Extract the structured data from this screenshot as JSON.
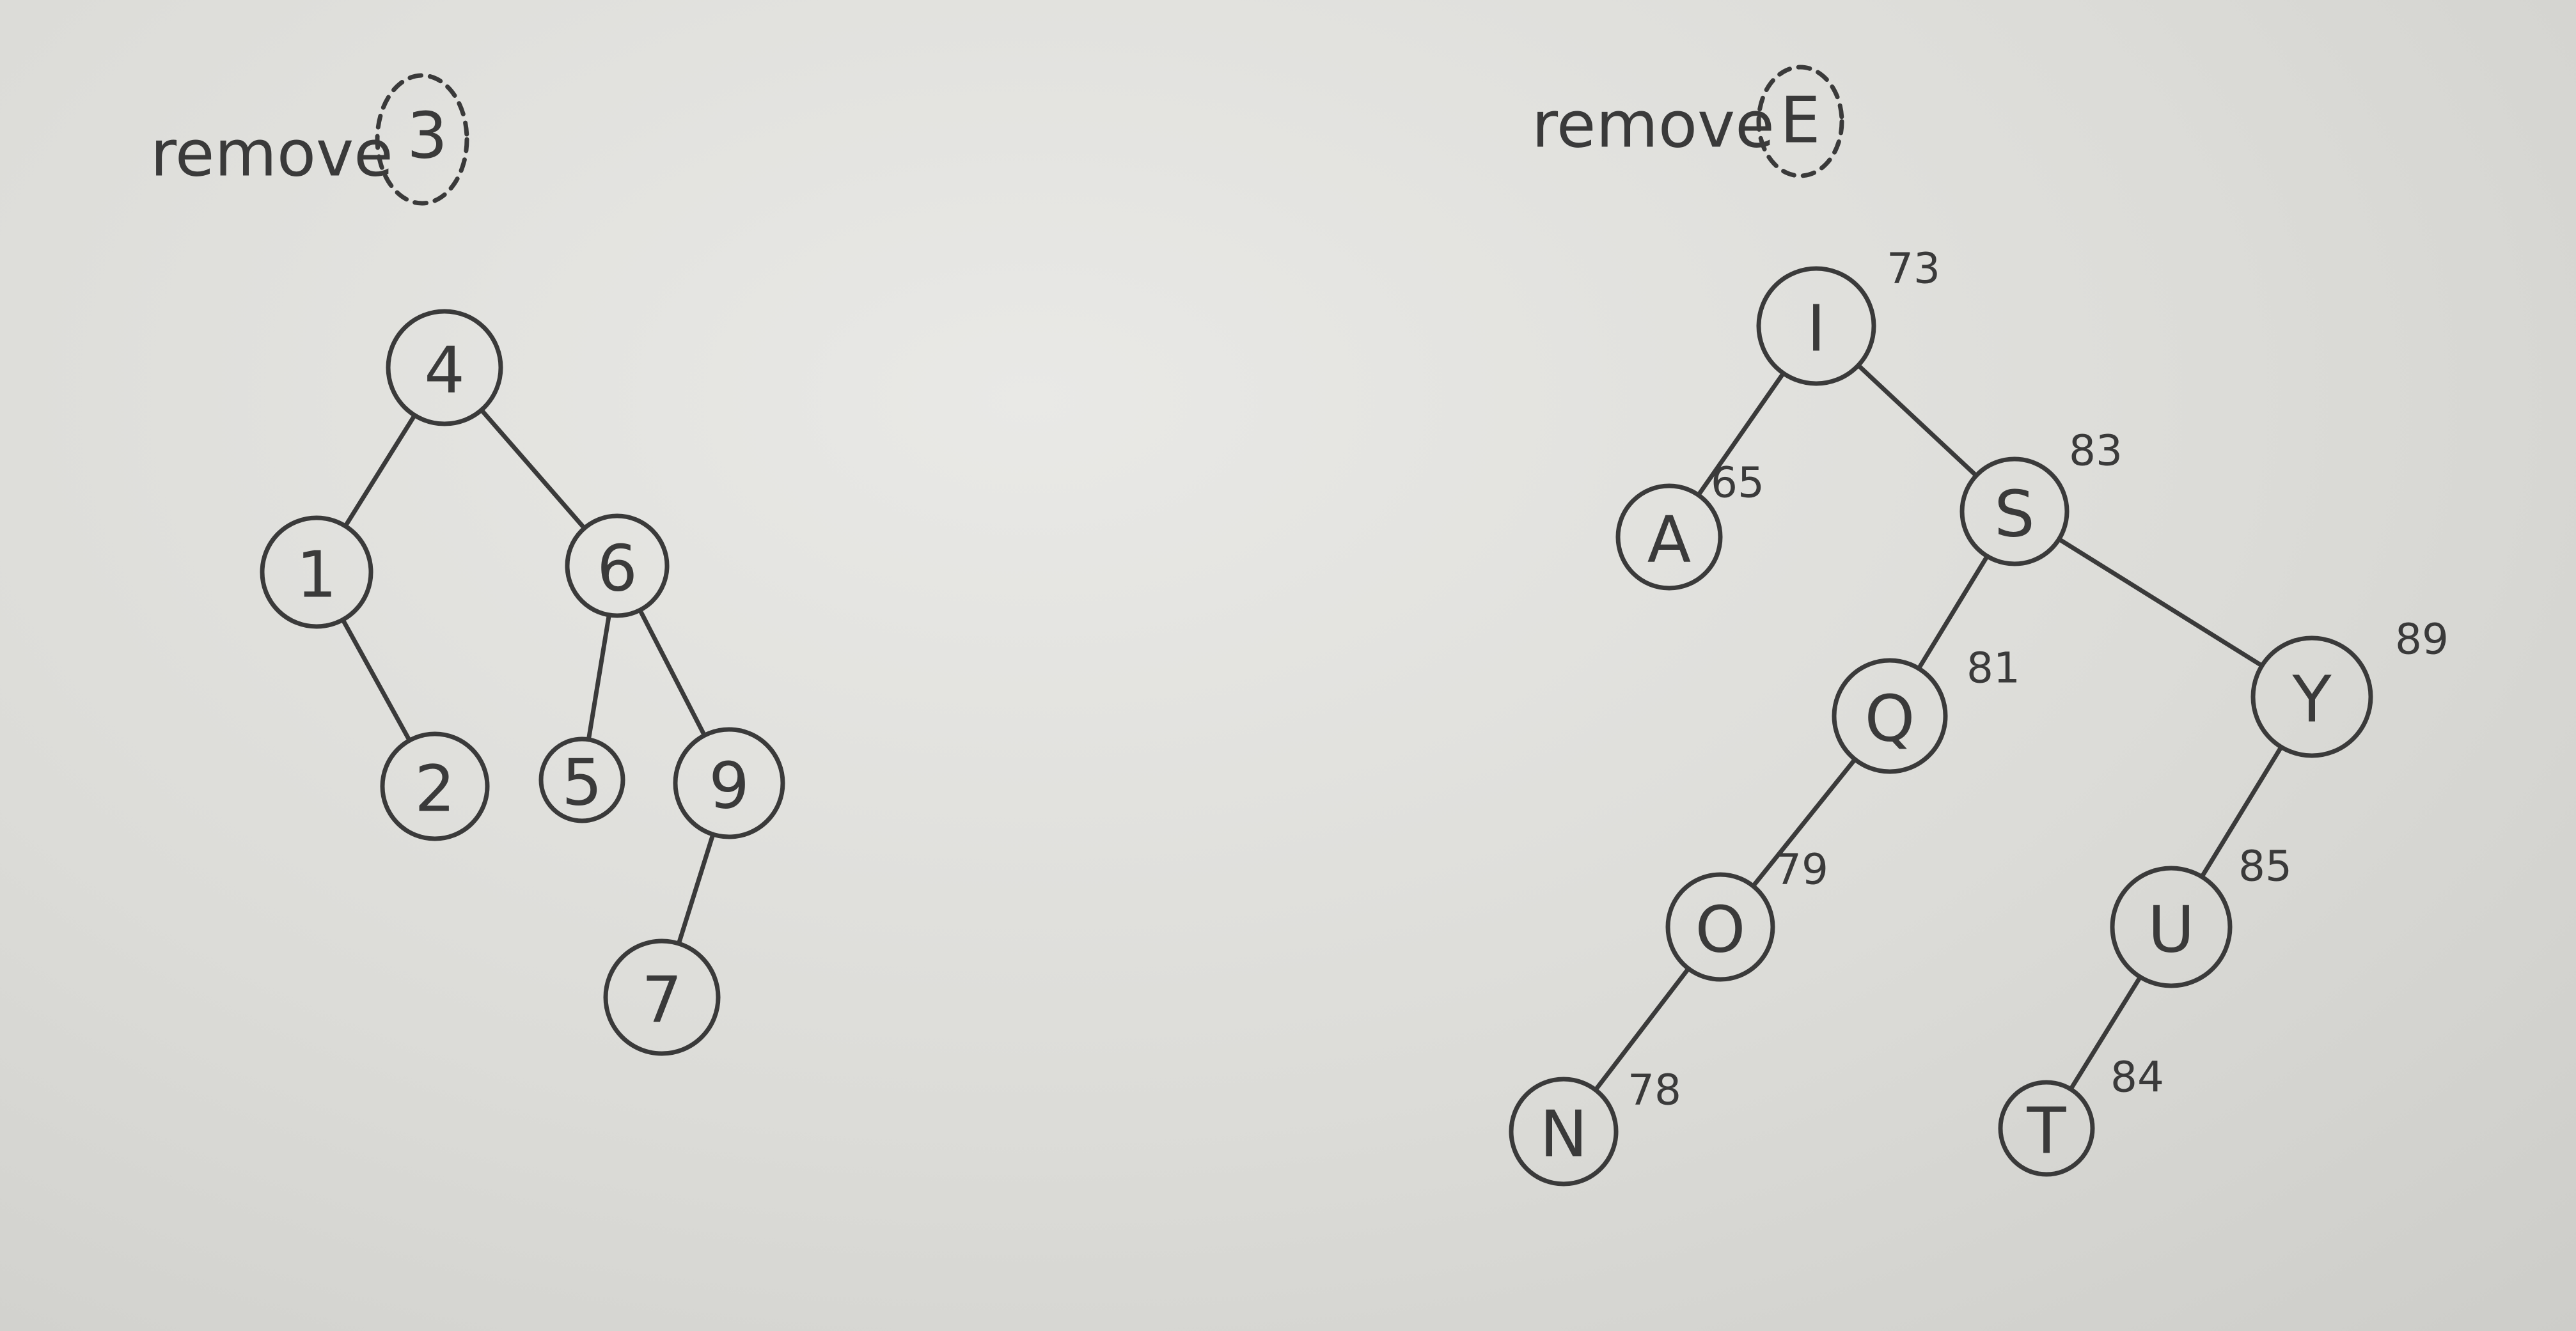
{
  "left_tree": {
    "title": "remove",
    "removed_key": "3",
    "nodes": [
      {
        "id": "n4",
        "label": "4"
      },
      {
        "id": "n1",
        "label": "1"
      },
      {
        "id": "n6",
        "label": "6"
      },
      {
        "id": "n2",
        "label": "2"
      },
      {
        "id": "n5",
        "label": "5"
      },
      {
        "id": "n9",
        "label": "9"
      },
      {
        "id": "n7",
        "label": "7"
      }
    ],
    "edges": [
      [
        "n4",
        "n1"
      ],
      [
        "n4",
        "n6"
      ],
      [
        "n1",
        "n2"
      ],
      [
        "n6",
        "n5"
      ],
      [
        "n6",
        "n9"
      ],
      [
        "n9",
        "n7"
      ]
    ]
  },
  "right_tree": {
    "title": "remove",
    "removed_key": "E",
    "nodes": [
      {
        "id": "I",
        "label": "I",
        "code": "73"
      },
      {
        "id": "A",
        "label": "A",
        "code": "65"
      },
      {
        "id": "S",
        "label": "S",
        "code": "83"
      },
      {
        "id": "Q",
        "label": "Q",
        "code": "81"
      },
      {
        "id": "Y",
        "label": "Y",
        "code": "89"
      },
      {
        "id": "O",
        "label": "O",
        "code": "79"
      },
      {
        "id": "U",
        "label": "U",
        "code": "85"
      },
      {
        "id": "N",
        "label": "N",
        "code": "78"
      },
      {
        "id": "T",
        "label": "T",
        "code": "84"
      }
    ],
    "edges": [
      [
        "I",
        "A"
      ],
      [
        "I",
        "S"
      ],
      [
        "S",
        "Q"
      ],
      [
        "S",
        "Y"
      ],
      [
        "Q",
        "O"
      ],
      [
        "O",
        "N"
      ],
      [
        "Y",
        "U"
      ],
      [
        "U",
        "T"
      ]
    ]
  }
}
